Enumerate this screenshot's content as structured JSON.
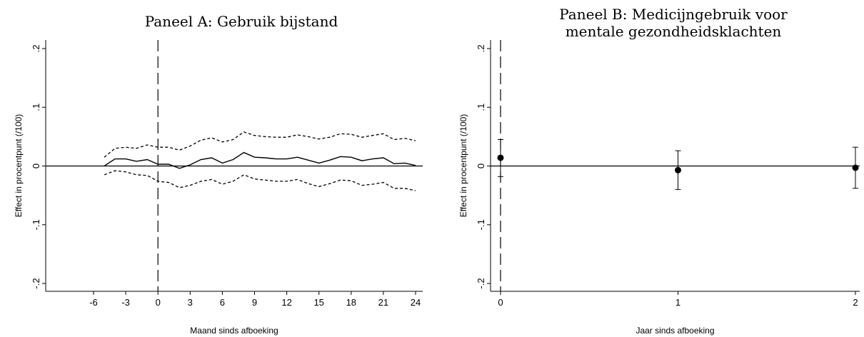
{
  "chart_data": [
    {
      "type": "line",
      "title": "Paneel A: Gebruik bijstand",
      "xlabel": "Maand sinds afboeking",
      "ylabel": "Effect in procentpunt (/100)",
      "xlim": [
        -6,
        24.5
      ],
      "ylim": [
        -0.21,
        0.21
      ],
      "x_ticks": [
        -6,
        -3,
        0,
        3,
        6,
        9,
        12,
        15,
        18,
        21,
        24
      ],
      "x_tick_labels": [
        "-6",
        "-3",
        "0",
        "3",
        "6",
        "9",
        "12",
        "15",
        "18",
        "21",
        "24"
      ],
      "y_ticks": [
        -0.2,
        -0.1,
        0,
        0.1,
        0.2
      ],
      "y_tick_labels": [
        "-.2",
        "-.1",
        "0",
        ".1",
        ".2"
      ],
      "reference_lines": {
        "x": 0,
        "y": 0
      },
      "x": [
        -5,
        -4,
        -3,
        -2,
        -1,
        0,
        1,
        2,
        3,
        4,
        5,
        6,
        7,
        8,
        9,
        10,
        11,
        12,
        13,
        14,
        15,
        16,
        17,
        18,
        19,
        20,
        21,
        22,
        23,
        24
      ],
      "series": [
        {
          "style": "solid",
          "values": [
            0.0,
            0.012,
            0.012,
            0.008,
            0.011,
            0.003,
            0.003,
            -0.004,
            0.002,
            0.011,
            0.014,
            0.005,
            0.011,
            0.023,
            0.015,
            0.014,
            0.012,
            0.012,
            0.015,
            0.01,
            0.005,
            0.01,
            0.016,
            0.015,
            0.009,
            0.012,
            0.014,
            0.004,
            0.005,
            0.001
          ]
        },
        {
          "style": "dashed",
          "values": [
            0.015,
            0.03,
            0.032,
            0.03,
            0.036,
            0.032,
            0.032,
            0.027,
            0.034,
            0.044,
            0.048,
            0.041,
            0.045,
            0.058,
            0.052,
            0.05,
            0.049,
            0.049,
            0.053,
            0.05,
            0.046,
            0.049,
            0.055,
            0.054,
            0.049,
            0.052,
            0.055,
            0.045,
            0.047,
            0.043
          ]
        },
        {
          "style": "dashed",
          "values": [
            -0.015,
            -0.008,
            -0.01,
            -0.015,
            -0.016,
            -0.026,
            -0.028,
            -0.037,
            -0.033,
            -0.026,
            -0.023,
            -0.031,
            -0.026,
            -0.015,
            -0.022,
            -0.024,
            -0.026,
            -0.026,
            -0.023,
            -0.03,
            -0.035,
            -0.03,
            -0.024,
            -0.025,
            -0.033,
            -0.031,
            -0.028,
            -0.038,
            -0.038,
            -0.042
          ]
        }
      ],
      "grid": false
    },
    {
      "type": "scatter",
      "title": "Paneel B: Medicijngebruik voor mentale gezondheidsklachten",
      "title_lines": [
        "Paneel B: Medicijngebruik voor",
        "mentale gezondheidsklachten"
      ],
      "xlabel": "Jaar sinds afboeking",
      "ylabel": "Effect in procentpunt (/100)",
      "xlim": [
        0,
        2
      ],
      "ylim": [
        -0.21,
        0.21
      ],
      "x_ticks": [
        0,
        1,
        2
      ],
      "x_tick_labels": [
        "0",
        "1",
        "2"
      ],
      "y_ticks": [
        -0.2,
        -0.1,
        0,
        0.1,
        0.2
      ],
      "y_tick_labels": [
        "-.2",
        "-.1",
        "0",
        ".1",
        ".2"
      ],
      "reference_lines": {
        "x": 0,
        "y": 0
      },
      "points": [
        {
          "x": 0,
          "y": 0.014,
          "ci": [
            -0.018,
            0.045
          ]
        },
        {
          "x": 1,
          "y": -0.007,
          "ci": [
            -0.04,
            0.026
          ]
        },
        {
          "x": 2,
          "y": -0.003,
          "ci": [
            -0.038,
            0.032
          ]
        }
      ],
      "grid": false
    }
  ]
}
